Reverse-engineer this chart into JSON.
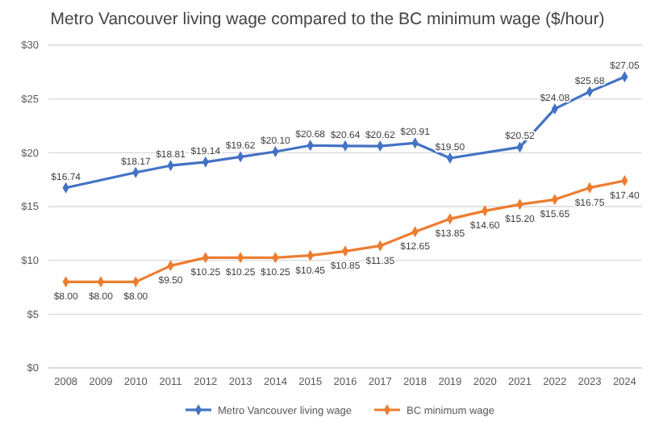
{
  "chart_data": {
    "type": "line",
    "title": "Metro Vancouver living wage compared to the BC minimum wage ($/hour)",
    "categories": [
      "2008",
      "2009",
      "2010",
      "2011",
      "2012",
      "2013",
      "2014",
      "2015",
      "2016",
      "2017",
      "2018",
      "2019",
      "2020",
      "2021",
      "2022",
      "2023",
      "2024"
    ],
    "series": [
      {
        "name": "Metro Vancouver living wage",
        "color": "#4472c4",
        "values": [
          16.74,
          null,
          18.17,
          18.81,
          19.14,
          19.62,
          20.1,
          20.68,
          20.64,
          20.62,
          20.91,
          19.5,
          null,
          20.52,
          24.08,
          25.68,
          27.05
        ],
        "value_labels": [
          "$16.74",
          null,
          "$18.17",
          "$18.81",
          "$19.14",
          "$19.62",
          "$20.10",
          "$20.68",
          "$20.64",
          "$20.62",
          "$20.91",
          "$19.50",
          null,
          "$20.52",
          "$24.08",
          "$25.68",
          "$27.05"
        ]
      },
      {
        "name": "BC minimum wage",
        "color": "#ed7d31",
        "values": [
          8.0,
          8.0,
          8.0,
          9.5,
          10.25,
          10.25,
          10.25,
          10.45,
          10.85,
          11.35,
          12.65,
          13.85,
          14.6,
          15.2,
          15.65,
          16.75,
          17.4
        ],
        "value_labels": [
          "$8.00",
          "$8.00",
          "$8.00",
          "$9.50",
          "$10.25",
          "$10.25",
          "$10.25",
          "$10.45",
          "$10.85",
          "$11.35",
          "$12.65",
          "$13.85",
          "$14.60",
          "$15.20",
          "$15.65",
          "$16.75",
          "$17.40"
        ]
      }
    ],
    "ylim": [
      0,
      30
    ],
    "yticks": [
      {
        "value": 0,
        "label": "$0"
      },
      {
        "value": 5,
        "label": "$5"
      },
      {
        "value": 10,
        "label": "$10"
      },
      {
        "value": 15,
        "label": "$15"
      },
      {
        "value": 20,
        "label": "$20"
      },
      {
        "value": 25,
        "label": "$25"
      },
      {
        "value": 30,
        "label": "$30"
      }
    ],
    "grid": "y",
    "legend": "bottom",
    "marker": "diamond",
    "line_style": "solid"
  }
}
